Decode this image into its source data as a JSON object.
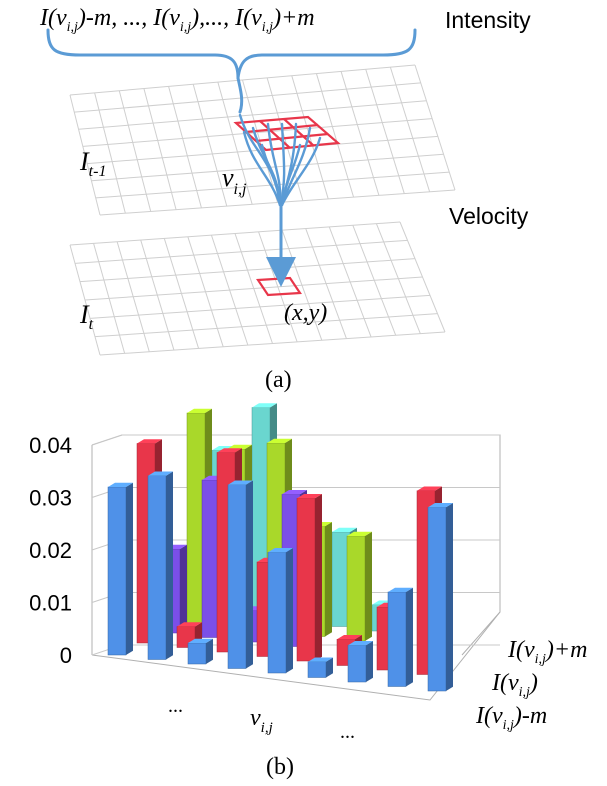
{
  "panel_a": {
    "top_expression": "I(v",
    "intensity_label": "Intensity",
    "velocity_label": "Velocity",
    "frame_prev_base": "I",
    "frame_prev_sub": "t-1",
    "frame_cur_base": "I",
    "frame_cur_sub": "t",
    "vertex_base": "v",
    "vertex_sub": "i,j",
    "target_label": "(x,y)",
    "caption": "(a)",
    "expr_parts": {
      "p1": "I(v",
      "s1": "i,j",
      "p2": ")-m, ..., I(v",
      "s2": "i,j",
      "p3": "),..., I(v",
      "s3": "i,j",
      "p4": ")+m"
    },
    "colors": {
      "arrow": "#5b9bd5",
      "highlight": "#e8364a",
      "grid": "#c8c8c8"
    }
  },
  "panel_b": {
    "caption": "(b)",
    "x_labels": {
      "left": "...",
      "mid_base": "v",
      "mid_sub": "i,j",
      "right": "..."
    },
    "depth_labels": {
      "top_a": "I(v",
      "top_sub": "i,j",
      "top_b": ")+m",
      "mid_a": "I(v",
      "mid_sub": "i,j",
      "mid_b": ")",
      "bot_a": "I(v",
      "bot_sub": "i,j",
      "bot_b": ")-m"
    }
  },
  "chart_data": {
    "type": "bar",
    "projection": "3d",
    "ylim": [
      0,
      0.04
    ],
    "yticks": [
      "0",
      "0.01",
      "0.02",
      "0.03",
      "0.04"
    ],
    "grid": true,
    "series": [
      {
        "color": "#4f91e8",
        "values": [
          0.032,
          0.035,
          0.004,
          0.035,
          0.023,
          0.003,
          0.007,
          0.018,
          0.035
        ]
      },
      {
        "color": "#e8364a",
        "values": [
          0.038,
          0.004,
          0.038,
          0.018,
          0.031,
          0.005,
          0.012,
          0.035
        ]
      },
      {
        "color": "#7b4fe8",
        "values": [
          0.016,
          0.03,
          0.006,
          0.029
        ]
      },
      {
        "color": "#a9d82a",
        "values": [
          0.04,
          0.034,
          0.036,
          0.021,
          0.02
        ]
      },
      {
        "color": "#6ad6cf",
        "values": [
          0.031,
          0.04,
          0.015,
          0.018,
          0.005
        ]
      }
    ]
  }
}
